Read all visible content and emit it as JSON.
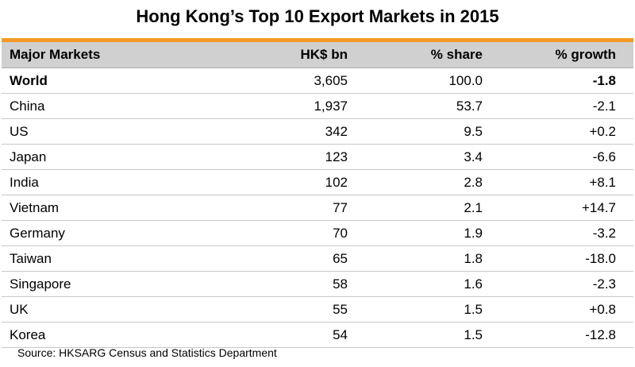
{
  "title": "Hong Kong’s Top 10 Export Markets in 2015",
  "accent_color": "#f39a25",
  "header_bg": "#d0d0d0",
  "source": "Source: HKSARG Census and Statistics Department",
  "chart_data": {
    "type": "table",
    "title": "Hong Kong’s Top 10 Export Markets in 2015",
    "columns": [
      "Major Markets",
      "HK$ bn",
      "% share",
      "% growth"
    ],
    "rows": [
      {
        "market": "World",
        "hk": "3,605",
        "share": "100.0",
        "growth": "-1.8"
      },
      {
        "market": "China",
        "hk": "1,937",
        "share": "53.7",
        "growth": "-2.1"
      },
      {
        "market": "US",
        "hk": "342",
        "share": "9.5",
        "growth": "+0.2"
      },
      {
        "market": "Japan",
        "hk": "123",
        "share": "3.4",
        "growth": "-6.6"
      },
      {
        "market": "India",
        "hk": "102",
        "share": "2.8",
        "growth": "+8.1"
      },
      {
        "market": "Vietnam",
        "hk": "77",
        "share": "2.1",
        "growth": "+14.7"
      },
      {
        "market": "Germany",
        "hk": "70",
        "share": "1.9",
        "growth": "-3.2"
      },
      {
        "market": "Taiwan",
        "hk": "65",
        "share": "1.8",
        "growth": "-18.0"
      },
      {
        "market": "Singapore",
        "hk": "58",
        "share": "1.6",
        "growth": "-2.3"
      },
      {
        "market": "UK",
        "hk": "55",
        "share": "1.5",
        "growth": "+0.8"
      },
      {
        "market": "Korea",
        "hk": "54",
        "share": "1.5",
        "growth": "-12.8"
      }
    ]
  }
}
